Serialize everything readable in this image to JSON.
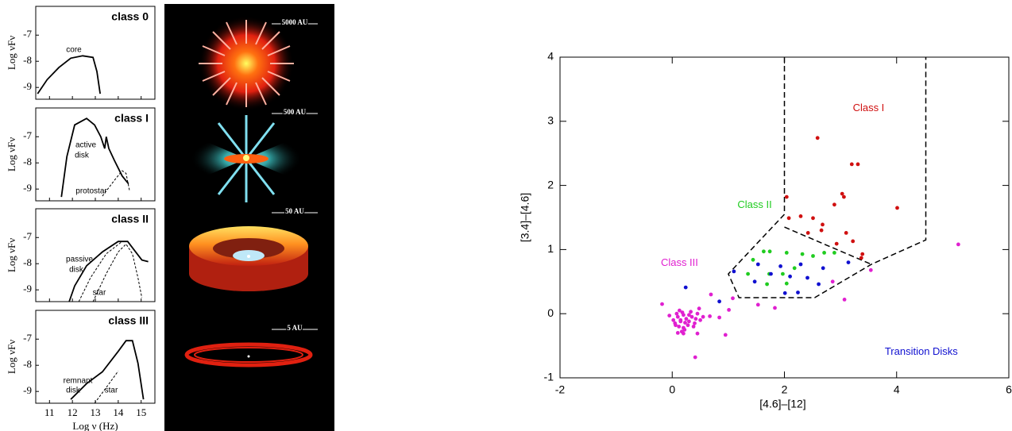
{
  "chart_data": [
    {
      "type": "line",
      "title": "class 0",
      "ylabel": "Log νFν",
      "xlim": [
        10.4,
        15.6
      ],
      "ylim": [
        -9.45,
        -5.9
      ],
      "xticks": [
        11,
        12,
        13,
        14,
        15
      ],
      "yticks": [
        -7,
        -8,
        -9
      ],
      "show_xtick_labels": false,
      "annotations": [
        "core"
      ],
      "series": [
        {
          "color": "#000000",
          "dashed": false,
          "x": [
            10.48,
            10.9,
            11.41,
            11.93,
            12.45,
            12.9,
            13.07,
            13.21
          ],
          "y": [
            -9.24,
            -8.7,
            -8.24,
            -7.88,
            -7.79,
            -7.85,
            -8.39,
            -9.24
          ]
        }
      ]
    },
    {
      "type": "line",
      "title": "class I",
      "ylabel": "Log νFν",
      "xlim": [
        10.4,
        15.6
      ],
      "ylim": [
        -9.45,
        -5.9
      ],
      "xticks": [
        11,
        12,
        13,
        14,
        15
      ],
      "yticks": [
        -7,
        -8,
        -9
      ],
      "show_xtick_labels": false,
      "annotations": [
        "active",
        "disk",
        "protostar"
      ],
      "series": [
        {
          "color": "#000000",
          "dashed": false,
          "x": [
            11.52,
            11.76,
            12.1,
            12.62,
            12.97,
            13.24,
            13.41,
            13.48,
            13.59,
            13.83,
            14.17,
            14.45
          ],
          "y": [
            -9.3,
            -7.76,
            -6.55,
            -6.3,
            -6.55,
            -7.0,
            -7.45,
            -7.0,
            -7.45,
            -7.9,
            -8.5,
            -8.8
          ]
        },
        {
          "color": "#000000",
          "dashed": true,
          "x": [
            13.31,
            13.83,
            14.17,
            14.34,
            14.5
          ],
          "y": [
            -9.27,
            -8.67,
            -8.3,
            -8.4,
            -9.1
          ]
        }
      ]
    },
    {
      "type": "line",
      "title": "class II",
      "ylabel": "Log νFν",
      "xlim": [
        10.4,
        15.6
      ],
      "ylim": [
        -9.45,
        -5.9
      ],
      "xticks": [
        11,
        12,
        13,
        14,
        15
      ],
      "yticks": [
        -7,
        -8,
        -9
      ],
      "show_xtick_labels": false,
      "annotations": [
        "passive",
        "disk",
        "star"
      ],
      "series": [
        {
          "color": "#000000",
          "dashed": false,
          "x": [
            11.86,
            12.1,
            12.62,
            13.31,
            14.0,
            14.41,
            14.76,
            15.03,
            15.31
          ],
          "y": [
            -9.45,
            -8.85,
            -8.08,
            -7.55,
            -7.15,
            -7.15,
            -7.55,
            -7.86,
            -7.92
          ]
        },
        {
          "color": "#000000",
          "dashed": true,
          "x": [
            12.9,
            13.48,
            14.0,
            14.34,
            14.62,
            14.86,
            15.03
          ],
          "y": [
            -9.45,
            -8.38,
            -7.55,
            -7.25,
            -7.62,
            -8.54,
            -9.3
          ]
        },
        {
          "color": "#000000",
          "dashed": true,
          "x": [
            12.28,
            12.79,
            13.48,
            14.17
          ],
          "y": [
            -9.45,
            -8.54,
            -7.62,
            -7.15
          ]
        }
      ]
    },
    {
      "type": "line",
      "title": "class III",
      "ylabel": "Log νFν",
      "xlabel": "Log ν (Hz)",
      "xlim": [
        10.4,
        15.6
      ],
      "ylim": [
        -9.45,
        -5.9
      ],
      "xticks": [
        11,
        12,
        13,
        14,
        15
      ],
      "yticks": [
        -7,
        -8,
        -9
      ],
      "show_xtick_labels": true,
      "annotations": [
        "remnant",
        "disk",
        "star"
      ],
      "series": [
        {
          "color": "#000000",
          "dashed": false,
          "x": [
            11.93,
            12.62,
            13.31,
            14.0,
            14.34,
            14.62,
            14.86,
            15.1
          ],
          "y": [
            -9.3,
            -8.7,
            -8.25,
            -7.47,
            -7.06,
            -7.06,
            -7.92,
            -9.3
          ]
        },
        {
          "color": "#000000",
          "dashed": true,
          "x": [
            12.97,
            13.48,
            14.0
          ],
          "y": [
            -9.45,
            -8.85,
            -8.22
          ]
        }
      ]
    },
    {
      "type": "scatter",
      "xlabel": "[4.6]–[12]",
      "ylabel": "[3.4]–[4.6]",
      "xlim": [
        -2,
        6
      ],
      "ylim": [
        -1,
        4
      ],
      "xticks": [
        -2,
        0,
        2,
        4,
        6
      ],
      "yticks": [
        -1,
        0,
        1,
        2,
        3,
        4
      ],
      "annotations": [
        {
          "text": "Class I",
          "color": "#d01010",
          "x": 3.5,
          "y": 3.2
        },
        {
          "text": "Class II",
          "color": "#20cc20",
          "x": 1.47,
          "y": 1.69
        },
        {
          "text": "Class III",
          "color": "#e020d0",
          "x": 0.13,
          "y": 0.79
        },
        {
          "text": "Transition Disks",
          "color": "#1010d0",
          "x": 4.44,
          "y": -0.6
        }
      ],
      "lines": [
        {
          "dashed": true,
          "x": [
            2,
            2,
            1.0,
            1.19,
            2.54,
            3.55,
            4.52,
            4.52
          ],
          "y": [
            4,
            1.55,
            0.62,
            0.25,
            0.25,
            0.77,
            1.15,
            4
          ]
        },
        {
          "dashed": true,
          "x": [
            2,
            3.55
          ],
          "y": [
            1.35,
            0.77
          ]
        }
      ],
      "series": [
        {
          "color": "#d01010",
          "x": [
            2.59,
            3.2,
            3.31,
            2.04,
            3.03,
            3.06,
            2.89,
            4.01,
            2.08,
            2.29,
            2.51,
            2.68,
            2.42,
            2.66,
            3.1,
            2.93,
            3.22,
            3.39,
            3.37
          ],
          "y": [
            2.74,
            2.33,
            2.33,
            1.82,
            1.87,
            1.82,
            1.7,
            1.65,
            1.49,
            1.52,
            1.49,
            1.39,
            1.26,
            1.3,
            1.26,
            1.09,
            1.13,
            0.93,
            0.87
          ]
        },
        {
          "color": "#20cc20",
          "x": [
            1.44,
            1.63,
            1.74,
            1.35,
            2.04,
            2.32,
            2.51,
            2.71,
            2.89,
            1.73,
            1.97,
            2.18,
            1.69,
            2.04
          ],
          "y": [
            0.84,
            0.97,
            0.97,
            0.62,
            0.95,
            0.93,
            0.9,
            0.95,
            0.95,
            0.62,
            0.62,
            0.71,
            0.46,
            0.47
          ]
        },
        {
          "color": "#1010d0",
          "x": [
            0.24,
            1.1,
            1.53,
            1.93,
            2.29,
            2.69,
            3.14,
            1.47,
            1.76,
            2.1,
            2.41,
            2.61,
            2.01,
            2.24,
            0.84
          ],
          "y": [
            0.41,
            0.66,
            0.77,
            0.74,
            0.77,
            0.71,
            0.8,
            0.5,
            0.62,
            0.58,
            0.56,
            0.46,
            0.32,
            0.33,
            0.19
          ]
        },
        {
          "color": "#e020d0",
          "x": [
            0.1,
            0.15,
            0.2,
            0.05,
            0.12,
            0.25,
            0.3,
            0.18,
            0.08,
            0.22,
            0.35,
            0.4,
            0.45,
            0.5,
            0.38,
            0.28,
            0.02,
            -0.05,
            0.13,
            0.17,
            0.23,
            0.33,
            0.42,
            0.55,
            0.48,
            0.1,
            0.2,
            0.3,
            0.06,
            0.15,
            5.1,
            3.54,
            3.07,
            2.86,
            1.83,
            1.53,
            1.01,
            0.84,
            0.67,
            0.95,
            0.41,
            0.45,
            0.2,
            -0.18,
            0.69,
            1.08
          ],
          "y": [
            -0.05,
            -0.1,
            -0.02,
            -0.15,
            -0.2,
            -0.08,
            -0.12,
            0.02,
            0.0,
            -0.25,
            -0.05,
            -0.15,
            0.0,
            -0.1,
            -0.2,
            -0.18,
            -0.1,
            -0.03,
            0.05,
            -0.28,
            -0.14,
            0.03,
            -0.08,
            -0.05,
            0.08,
            -0.3,
            -0.22,
            -0.02,
            -0.18,
            -0.12,
            1.08,
            0.68,
            0.22,
            0.5,
            0.09,
            0.14,
            0.06,
            -0.06,
            -0.04,
            -0.33,
            -0.68,
            -0.31,
            -0.31,
            0.15,
            0.3,
            0.24
          ]
        }
      ]
    }
  ],
  "illustration_labels": [
    "5000 AU",
    "500 AU",
    "50 AU",
    "5 AU"
  ]
}
